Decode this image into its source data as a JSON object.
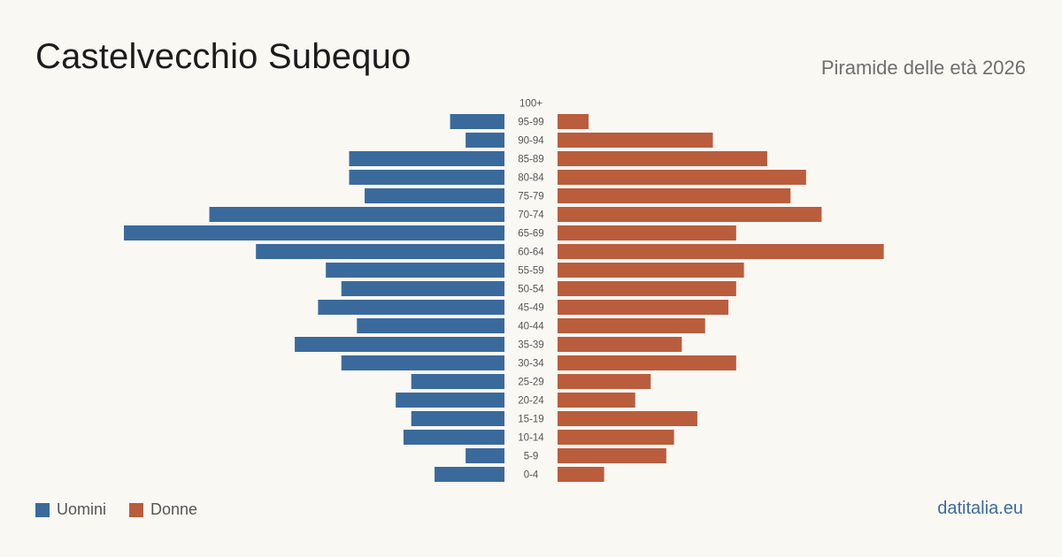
{
  "header": {
    "title": "Castelvecchio Subequo",
    "subtitle": "Piramide delle età 2026"
  },
  "legend": {
    "men_label": "Uomini",
    "women_label": "Donne"
  },
  "footer": {
    "source": "datitalia.eu"
  },
  "colors": {
    "men": "#3a6a9c",
    "women": "#b95d3d",
    "label": "#555555"
  },
  "chart_data": {
    "type": "bar",
    "orientation": "horizontal-pyramid",
    "categories": [
      "100+",
      "95-99",
      "90-94",
      "85-89",
      "80-84",
      "75-79",
      "70-74",
      "65-69",
      "60-64",
      "55-59",
      "50-54",
      "45-49",
      "40-44",
      "35-39",
      "30-34",
      "25-29",
      "20-24",
      "15-19",
      "10-14",
      "5-9",
      "0-4"
    ],
    "series": [
      {
        "name": "Uomini",
        "values": [
          0,
          7,
          5,
          20,
          20,
          18,
          38,
          49,
          32,
          23,
          21,
          24,
          19,
          27,
          21,
          12,
          14,
          12,
          13,
          5,
          9
        ]
      },
      {
        "name": "Donne",
        "values": [
          0,
          4,
          20,
          27,
          32,
          30,
          34,
          23,
          42,
          24,
          23,
          22,
          19,
          16,
          23,
          12,
          10,
          18,
          15,
          14,
          6
        ]
      }
    ],
    "grid": false,
    "legend_position": "bottom-left"
  }
}
